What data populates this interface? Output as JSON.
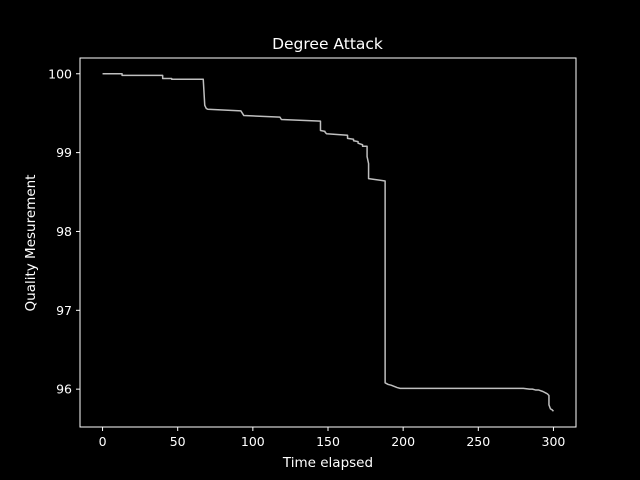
{
  "chart_data": {
    "type": "line",
    "title": "Degree Attack",
    "xlabel": "Time elapsed",
    "ylabel": "Quality Mesurement",
    "xlim": [
      -15,
      315
    ],
    "ylim": [
      95.52,
      100.2
    ],
    "xticks": [
      0,
      50,
      100,
      150,
      200,
      250,
      300
    ],
    "yticks": [
      96,
      97,
      98,
      99,
      100
    ],
    "grid": false,
    "legend": "none",
    "colors": {
      "background": "#000000",
      "line": "#bfbfbf",
      "axes": "#ffffff",
      "text": "#ffffff"
    },
    "series": [
      {
        "x": [
          0,
          13,
          13,
          40,
          40,
          46,
          46,
          67,
          68,
          69,
          70,
          92,
          93,
          94,
          118,
          119,
          145,
          145,
          148,
          148,
          149,
          163,
          163,
          167,
          167,
          170,
          170,
          173,
          173,
          176,
          176,
          177,
          177,
          188,
          188,
          190,
          192,
          196,
          198,
          250,
          280,
          284,
          286,
          288,
          290,
          293,
          295,
          296,
          297,
          297,
          298,
          299,
          300
        ],
        "y": [
          100.0,
          100.0,
          99.98,
          99.98,
          99.94,
          99.94,
          99.93,
          99.93,
          99.6,
          99.56,
          99.55,
          99.53,
          99.5,
          99.47,
          99.45,
          99.42,
          99.4,
          99.28,
          99.27,
          99.26,
          99.24,
          99.22,
          99.18,
          99.17,
          99.15,
          99.14,
          99.12,
          99.1,
          99.08,
          99.08,
          98.95,
          98.86,
          98.67,
          98.64,
          96.08,
          96.06,
          96.05,
          96.02,
          96.01,
          96.01,
          96.01,
          96.0,
          96.0,
          95.99,
          95.99,
          95.97,
          95.95,
          95.94,
          95.92,
          95.8,
          95.75,
          95.74,
          95.72
        ]
      }
    ]
  }
}
